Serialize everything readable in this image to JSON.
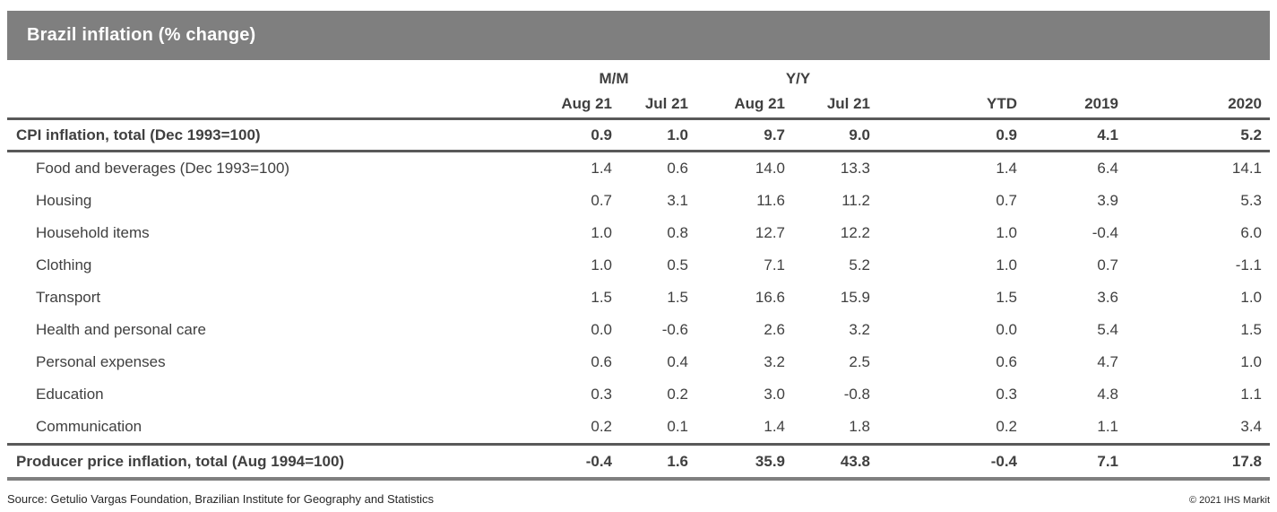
{
  "title": "Brazil inflation (% change)",
  "footer": {
    "source": "Source: Getulio Vargas Foundation, Brazilian Institute for Geography and Statistics",
    "copyright": "© 2021 IHS Markit"
  },
  "colors": {
    "title_bar_bg": "#7f7f7f",
    "title_text": "#ffffff",
    "rule_dark": "#595959",
    "rule_bottom": "#7f7f7f",
    "text": "#404040"
  },
  "chart_data": {
    "type": "table",
    "title": "Brazil inflation (% change)",
    "header": {
      "group_mm": "M/M",
      "group_yy": "Y/Y",
      "cols": [
        "Aug 21",
        "Jul 21",
        "Aug 21",
        "Jul 21",
        "YTD",
        "2019",
        "2020"
      ]
    },
    "rows": [
      {
        "label": "CPI inflation, total (Dec 1993=100)",
        "bold": true,
        "indent": false,
        "values": [
          0.9,
          1.0,
          9.7,
          9.0,
          0.9,
          4.1,
          5.2
        ]
      },
      {
        "label": "Food and beverages (Dec 1993=100)",
        "bold": false,
        "indent": true,
        "values": [
          1.4,
          0.6,
          14.0,
          13.3,
          1.4,
          6.4,
          14.1
        ]
      },
      {
        "label": "Housing",
        "bold": false,
        "indent": true,
        "values": [
          0.7,
          3.1,
          11.6,
          11.2,
          0.7,
          3.9,
          5.3
        ]
      },
      {
        "label": "Household items",
        "bold": false,
        "indent": true,
        "values": [
          1.0,
          0.8,
          12.7,
          12.2,
          1.0,
          -0.4,
          6.0
        ]
      },
      {
        "label": "Clothing",
        "bold": false,
        "indent": true,
        "values": [
          1.0,
          0.5,
          7.1,
          5.2,
          1.0,
          0.7,
          -1.1
        ]
      },
      {
        "label": "Transport",
        "bold": false,
        "indent": true,
        "values": [
          1.5,
          1.5,
          16.6,
          15.9,
          1.5,
          3.6,
          1.0
        ]
      },
      {
        "label": "Health and personal care",
        "bold": false,
        "indent": true,
        "values": [
          0.0,
          -0.6,
          2.6,
          3.2,
          0.0,
          5.4,
          1.5
        ]
      },
      {
        "label": "Personal expenses",
        "bold": false,
        "indent": true,
        "values": [
          0.6,
          0.4,
          3.2,
          2.5,
          0.6,
          4.7,
          1.0
        ]
      },
      {
        "label": "Education",
        "bold": false,
        "indent": true,
        "values": [
          0.3,
          0.2,
          3.0,
          -0.8,
          0.3,
          4.8,
          1.1
        ]
      },
      {
        "label": "Communication",
        "bold": false,
        "indent": true,
        "values": [
          0.2,
          0.1,
          1.4,
          1.8,
          0.2,
          1.1,
          3.4
        ]
      },
      {
        "label": "Producer price inflation, total (Aug 1994=100)",
        "bold": true,
        "indent": false,
        "values": [
          -0.4,
          1.6,
          35.9,
          43.8,
          -0.4,
          7.1,
          17.8
        ]
      }
    ]
  }
}
